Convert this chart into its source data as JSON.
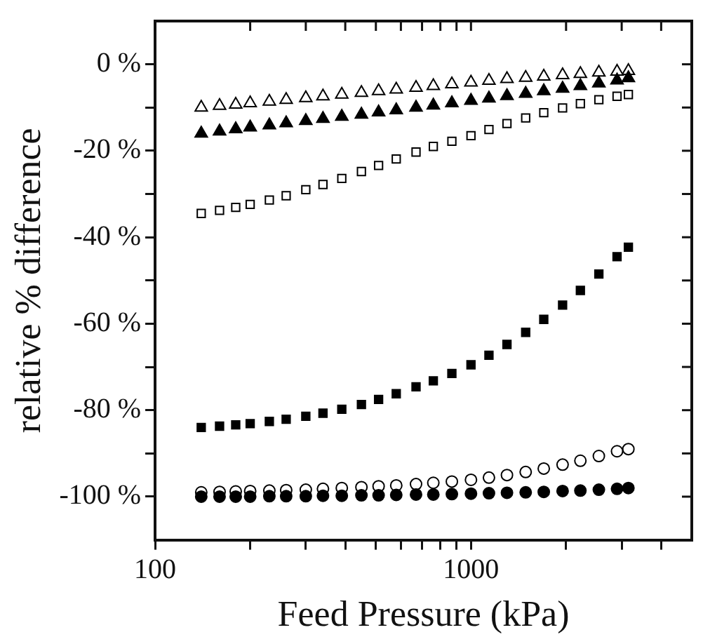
{
  "chart_data": {
    "type": "scatter",
    "xlabel": "Feed Pressure (kPa)",
    "ylabel": "relative % difference",
    "log": "x",
    "grid": false,
    "legend": false,
    "x": [
      140,
      160,
      180,
      200,
      230,
      260,
      300,
      340,
      390,
      450,
      510,
      580,
      670,
      760,
      870,
      1000,
      1140,
      1300,
      1490,
      1700,
      1950,
      2220,
      2540,
      2900,
      3150
    ],
    "xlim": [
      100,
      5000
    ],
    "xticks": [
      100,
      {
        "value": 200,
        "label": null
      },
      {
        "value": 300,
        "label": null
      },
      {
        "value": 400,
        "label": null
      },
      {
        "value": 500,
        "label": null
      },
      {
        "value": 600,
        "label": null
      },
      {
        "value": 700,
        "label": null
      },
      {
        "value": 800,
        "label": null
      },
      {
        "value": 900,
        "label": null
      },
      1000,
      {
        "value": 2000,
        "label": null
      },
      {
        "value": 3000,
        "label": null
      },
      {
        "value": 4000,
        "label": null
      }
    ],
    "ylim": [
      -110,
      10
    ],
    "yticks": [
      {
        "value": -100,
        "label": "-100 %"
      },
      {
        "value": -90,
        "label": null
      },
      {
        "value": -80,
        "label": "-80 %"
      },
      {
        "value": -70,
        "label": null
      },
      {
        "value": -60,
        "label": "-60 %"
      },
      {
        "value": -50,
        "label": null
      },
      {
        "value": -40,
        "label": "-40 %"
      },
      {
        "value": -30,
        "label": null
      },
      {
        "value": -20,
        "label": "-20 %"
      },
      {
        "value": -10,
        "label": null
      },
      {
        "value": 0,
        "label": "0 %"
      }
    ],
    "series": [
      {
        "color": "#000000",
        "marker": "triangle-open",
        "values": [
          -10,
          -9.6,
          -9.3,
          -9,
          -8.6,
          -8.2,
          -7.8,
          -7.4,
          -7,
          -6.6,
          -6.2,
          -5.8,
          -5.4,
          -5,
          -4.6,
          -4.2,
          -3.8,
          -3.4,
          -3.1,
          -2.8,
          -2.5,
          -2.2,
          -1.9,
          -1.7,
          -1.5
        ]
      },
      {
        "color": "#000000",
        "marker": "triangle",
        "values": [
          -16,
          -15.5,
          -15,
          -14.6,
          -14.1,
          -13.6,
          -13.1,
          -12.6,
          -12.1,
          -11.6,
          -11.1,
          -10.6,
          -10,
          -9.5,
          -9,
          -8.4,
          -7.9,
          -7.3,
          -6.8,
          -6.2,
          -5.6,
          -5,
          -4.4,
          -3.7,
          -3.2
        ]
      },
      {
        "color": "#000000",
        "marker": "square-open",
        "values": [
          -34.5,
          -33.8,
          -33.1,
          -32.4,
          -31.4,
          -30.4,
          -29,
          -27.8,
          -26.4,
          -24.8,
          -23.4,
          -21.9,
          -20.3,
          -19,
          -17.8,
          -16.5,
          -15.1,
          -13.7,
          -12.4,
          -11.2,
          -10.1,
          -9.1,
          -8.2,
          -7.4,
          -7
        ]
      },
      {
        "color": "#000000",
        "marker": "square",
        "values": [
          -84,
          -83.7,
          -83.4,
          -83.1,
          -82.6,
          -82.1,
          -81.4,
          -80.7,
          -79.8,
          -78.7,
          -77.5,
          -76.2,
          -74.6,
          -73.2,
          -71.5,
          -69.5,
          -67.3,
          -64.8,
          -62,
          -59,
          -55.7,
          -52.3,
          -48.5,
          -44.5,
          -42.3
        ]
      },
      {
        "color": "#000000",
        "marker": "circle-open",
        "values": [
          -99,
          -98.9,
          -98.8,
          -98.7,
          -98.6,
          -98.5,
          -98.4,
          -98.2,
          -98,
          -97.8,
          -97.6,
          -97.4,
          -97.1,
          -96.8,
          -96.5,
          -96.1,
          -95.6,
          -95,
          -94.3,
          -93.5,
          -92.6,
          -91.7,
          -90.6,
          -89.5,
          -89
        ]
      },
      {
        "color": "#000000",
        "marker": "circle",
        "values": [
          -100,
          -100,
          -100,
          -100,
          -99.9,
          -99.9,
          -99.9,
          -99.8,
          -99.8,
          -99.7,
          -99.7,
          -99.6,
          -99.5,
          -99.5,
          -99.4,
          -99.3,
          -99.2,
          -99.1,
          -99,
          -98.9,
          -98.7,
          -98.6,
          -98.4,
          -98.2,
          -98
        ]
      }
    ]
  }
}
